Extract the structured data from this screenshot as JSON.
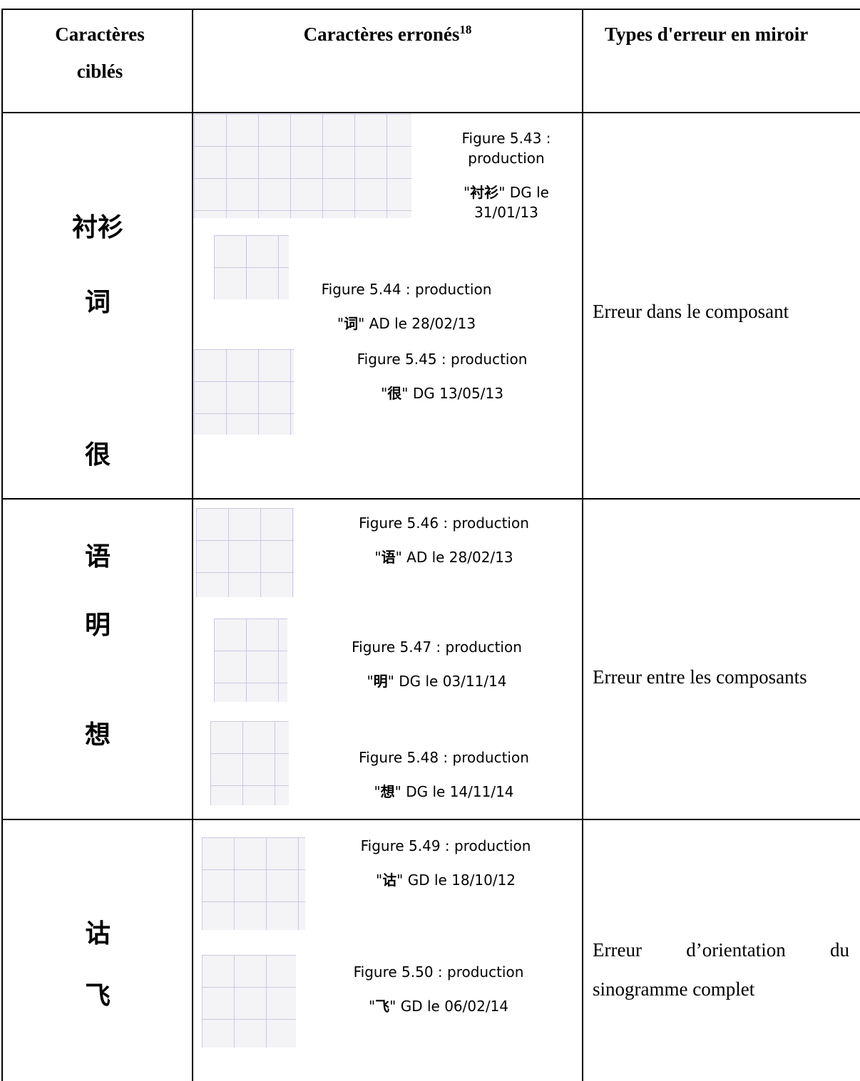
{
  "table": {
    "header": {
      "target": "Caractères ciblés",
      "errors": "Caractères erronés",
      "errors_note": "18",
      "type": "Types d'erreur en miroir"
    },
    "rows": [
      {
        "targets": [
          "衬衫",
          "词",
          "很"
        ],
        "type": "Erreur dans le composant",
        "figures": [
          {
            "label": "Figure 5.43 : production",
            "line2": [
              "\"",
              "衬衫",
              "\" DG le 31/01/13"
            ]
          },
          {
            "label": "Figure 5.44 : production",
            "line2": [
              "\"",
              "词",
              "\" AD le 28/02/13"
            ]
          },
          {
            "label": "Figure 5.45 : production",
            "line2": [
              "\"",
              "很",
              "\" DG 13/05/13"
            ]
          }
        ]
      },
      {
        "targets": [
          "语",
          "明",
          "想"
        ],
        "type": "Erreur entre les composants",
        "figures": [
          {
            "label": "Figure 5.46 : production",
            "line2": [
              "\"",
              "语",
              "\" AD le 28/02/13"
            ]
          },
          {
            "label": "Figure 5.47 : production",
            "line2": [
              "\"",
              "明",
              "\" DG le 03/11/14"
            ]
          },
          {
            "label": "Figure 5.48 : production",
            "line2": [
              "\"",
              "想",
              "\" DG le 14/11/14"
            ]
          }
        ]
      },
      {
        "targets": [
          "诂",
          "飞"
        ],
        "type": "Erreur d’orientation du sinogramme complet",
        "figures": [
          {
            "label": "Figure 5.49 : production",
            "line2": [
              "\"",
              "诂",
              "\" GD le 18/10/12"
            ]
          },
          {
            "label": "Figure 5.50 : production",
            "line2": [
              "\"",
              "飞",
              "\" GD le 06/02/14"
            ]
          }
        ]
      }
    ]
  }
}
